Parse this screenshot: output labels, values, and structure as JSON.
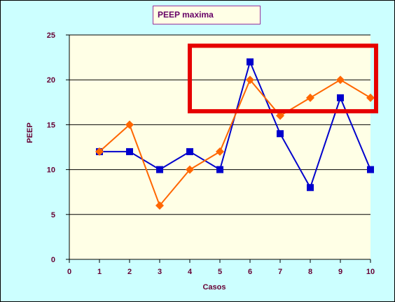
{
  "chart_data": {
    "type": "line",
    "title": "PEEP maxima",
    "xlabel": "Casos",
    "ylabel": "PEEP",
    "x_ticks": [
      0,
      1,
      2,
      3,
      4,
      5,
      6,
      7,
      8,
      9,
      10
    ],
    "y_ticks": [
      0,
      5,
      10,
      15,
      20,
      25
    ],
    "xlim": [
      0,
      10
    ],
    "ylim": [
      0,
      25
    ],
    "grid": "horizontal",
    "categories": [
      1,
      2,
      3,
      4,
      5,
      6,
      7,
      8,
      9,
      10
    ],
    "series": [
      {
        "color": "#0000cc",
        "marker": "square",
        "values": [
          12,
          12,
          10,
          12,
          10,
          22,
          14,
          8,
          18,
          10
        ]
      },
      {
        "color": "#ff6600",
        "marker": "diamond",
        "values": [
          12,
          15,
          6,
          10,
          12,
          20,
          16,
          18,
          20,
          18
        ]
      }
    ],
    "highlight_box": {
      "color": "#e60000",
      "x_range": [
        4,
        10
      ],
      "y_range": [
        16.5,
        23.8
      ]
    }
  },
  "colors": {
    "page_background": "#ccffff",
    "plot_background": "#ffffe6",
    "title_border": "#993399"
  }
}
